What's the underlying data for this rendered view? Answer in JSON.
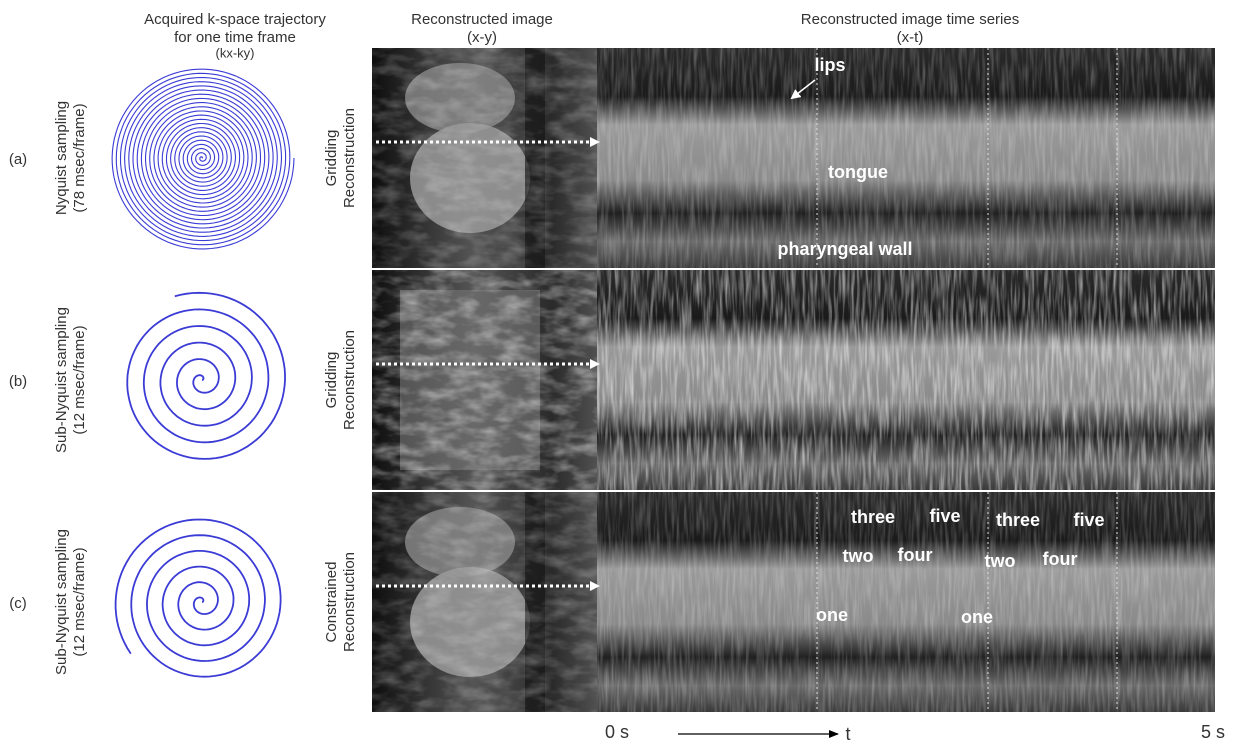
{
  "columns": {
    "trajectory": {
      "title": [
        "Acquired k-space trajectory",
        "for one time frame"
      ],
      "subtitle": "(kx-ky)"
    },
    "image": {
      "title": "Reconstructed image",
      "subtitle": "(x-y)"
    },
    "series": {
      "title": "Reconstructed image time series",
      "subtitle": "(x-t)"
    }
  },
  "rows": [
    {
      "label": "(a)",
      "sampling": [
        "Nyquist sampling",
        "(78 msec/frame)"
      ],
      "method": [
        "Gridding",
        "Reconstruction"
      ],
      "annotations": [
        "lips",
        "tongue",
        "pharyngeal wall"
      ]
    },
    {
      "label": "(b)",
      "sampling": [
        "Sub-Nyquist sampling",
        "(12 msec/frame)"
      ],
      "method": [
        "Gridding",
        "Reconstruction"
      ],
      "annotations": []
    },
    {
      "label": "(c)",
      "sampling": [
        "Sub-Nyquist sampling",
        "(12 msec/frame)"
      ],
      "method": [
        "Constrained",
        "Reconstruction"
      ],
      "annotations": [
        "three",
        "five",
        "three",
        "five",
        "two",
        "four",
        "two",
        "four",
        "one",
        "one"
      ]
    }
  ],
  "time_axis": {
    "start": "0 s",
    "label": "t",
    "end": "5 s"
  }
}
